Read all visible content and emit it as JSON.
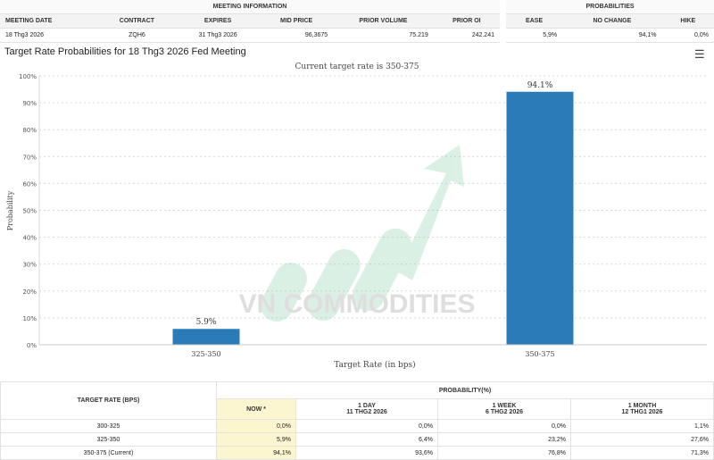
{
  "meeting_info": {
    "group_label": "MEETING INFORMATION",
    "columns": [
      "MEETING DATE",
      "CONTRACT",
      "EXPIRES",
      "MID PRICE",
      "PRIOR VOLUME",
      "PRIOR OI"
    ],
    "row": [
      "18 Thg3 2026",
      "ZQH6",
      "31 Thg3 2026",
      "96,3675",
      "75.219",
      "242.241"
    ]
  },
  "probabilities": {
    "group_label": "PROBABILITIES",
    "columns": [
      "EASE",
      "NO CHANGE",
      "HIKE"
    ],
    "row": [
      "5,9%",
      "94,1%",
      "0,0%"
    ]
  },
  "chart_title": "Target Rate Probabilities for 18 Thg3 2026 Fed Meeting",
  "menu_icon": "hamburger-menu-icon",
  "watermark": "VN COMMODITIES",
  "chart_data": {
    "type": "bar",
    "title": "",
    "subtitle": "Current target rate is 350-375",
    "xlabel": "Target Rate (in bps)",
    "ylabel": "Probability",
    "categories": [
      "325-350",
      "350-375"
    ],
    "values": [
      5.9,
      94.1
    ],
    "data_labels": [
      "5.9%",
      "94.1%"
    ],
    "y_ticks": [
      "0%",
      "10%",
      "20%",
      "30%",
      "40%",
      "50%",
      "60%",
      "70%",
      "80%",
      "90%",
      "100%"
    ],
    "ylim": [
      0,
      100
    ],
    "bar_color": "#2b7bb9",
    "grid": true
  },
  "rate_table": {
    "header_left": "TARGET RATE (BPS)",
    "header_right": "PROBABILITY(%)",
    "subcols": [
      {
        "label": "NOW *",
        "date": ""
      },
      {
        "label": "1 DAY",
        "date": "11 THG2 2026"
      },
      {
        "label": "1 WEEK",
        "date": "6 THG2 2026"
      },
      {
        "label": "1 MONTH",
        "date": "12 THG1 2026"
      }
    ],
    "rows": [
      {
        "rate": "300-325",
        "values": [
          "0,0%",
          "0,0%",
          "0,0%",
          "1,1%"
        ]
      },
      {
        "rate": "325-350",
        "values": [
          "5,9%",
          "6,4%",
          "23,2%",
          "27,6%"
        ]
      },
      {
        "rate": "350-375 (Current)",
        "values": [
          "94,1%",
          "93,6%",
          "76,8%",
          "71,3%"
        ]
      }
    ]
  }
}
